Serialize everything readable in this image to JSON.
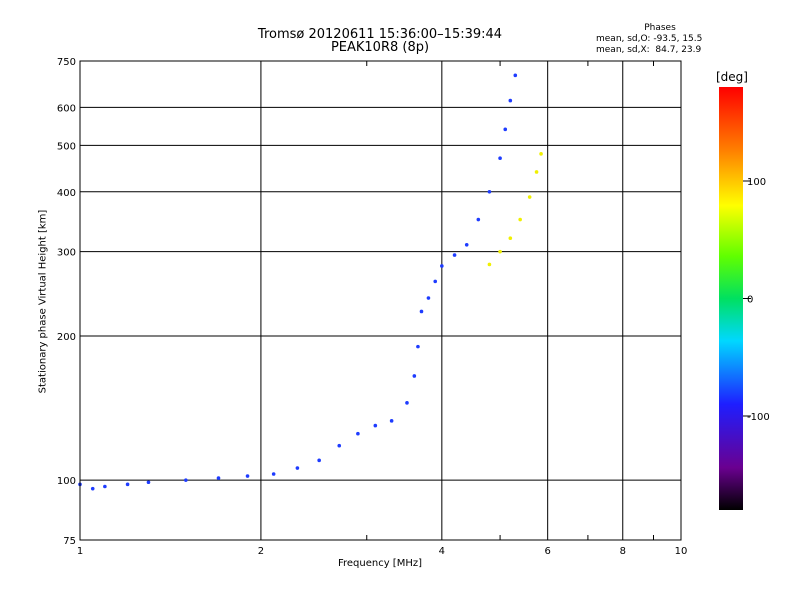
{
  "title": "Tromsø 20120611 15:36:00–15:39:44",
  "subtitle": "PEAK10R8 (8p)",
  "phases": {
    "header": "Phases",
    "line_o": "mean, sd,O: -93.5, 15.5",
    "line_x": "mean, sd,X:  84.7, 23.9"
  },
  "colorbar": {
    "unit": "[deg]",
    "ticks": [
      "100",
      "0",
      "-100"
    ],
    "tick_values": [
      100,
      0,
      -100
    ],
    "range": [
      -180,
      180
    ]
  },
  "chart_data": {
    "type": "scatter",
    "title": "Tromsø 20120611 15:36:00–15:39:44",
    "subtitle": "PEAK10R8 (8p)",
    "xlabel": "Frequency [MHz]",
    "ylabel": "Stationary phase Virtual Height [km]",
    "x_scale": "log",
    "y_scale": "log",
    "xlim": [
      1,
      10
    ],
    "ylim": [
      75,
      750
    ],
    "x_ticks": [
      1,
      2,
      4,
      6,
      8,
      10
    ],
    "x_tick_labels": [
      "1",
      "2",
      "4",
      "6",
      "8",
      "10"
    ],
    "y_ticks": [
      75,
      100,
      200,
      300,
      400,
      500,
      600,
      750
    ],
    "y_tick_labels": [
      "75",
      "100",
      "200",
      "300",
      "400",
      "500",
      "600",
      "750"
    ],
    "grid": true,
    "series": [
      {
        "mode": "O",
        "phase_deg": -93.5,
        "color": "#1e3cff",
        "points": [
          [
            1.0,
            98
          ],
          [
            1.05,
            96
          ],
          [
            1.1,
            97
          ],
          [
            1.2,
            98
          ],
          [
            1.3,
            99
          ],
          [
            1.5,
            100
          ],
          [
            1.7,
            101
          ],
          [
            1.9,
            102
          ],
          [
            2.1,
            103
          ],
          [
            2.3,
            106
          ],
          [
            2.5,
            110
          ],
          [
            2.7,
            118
          ],
          [
            2.9,
            125
          ],
          [
            3.1,
            130
          ],
          [
            3.3,
            133
          ],
          [
            3.5,
            145
          ],
          [
            3.6,
            165
          ],
          [
            3.65,
            190
          ],
          [
            3.7,
            225
          ],
          [
            3.8,
            240
          ],
          [
            3.9,
            260
          ],
          [
            4.0,
            280
          ],
          [
            4.2,
            295
          ],
          [
            4.4,
            310
          ],
          [
            4.6,
            350
          ],
          [
            4.8,
            400
          ],
          [
            5.0,
            470
          ],
          [
            5.1,
            540
          ],
          [
            5.2,
            620
          ],
          [
            5.3,
            700
          ]
        ]
      },
      {
        "mode": "X",
        "phase_deg": 84.7,
        "color": "#f0f000",
        "points": [
          [
            4.8,
            282
          ],
          [
            5.0,
            300
          ],
          [
            5.2,
            320
          ],
          [
            5.4,
            350
          ],
          [
            5.6,
            390
          ],
          [
            5.75,
            440
          ],
          [
            5.85,
            480
          ]
        ]
      }
    ]
  }
}
